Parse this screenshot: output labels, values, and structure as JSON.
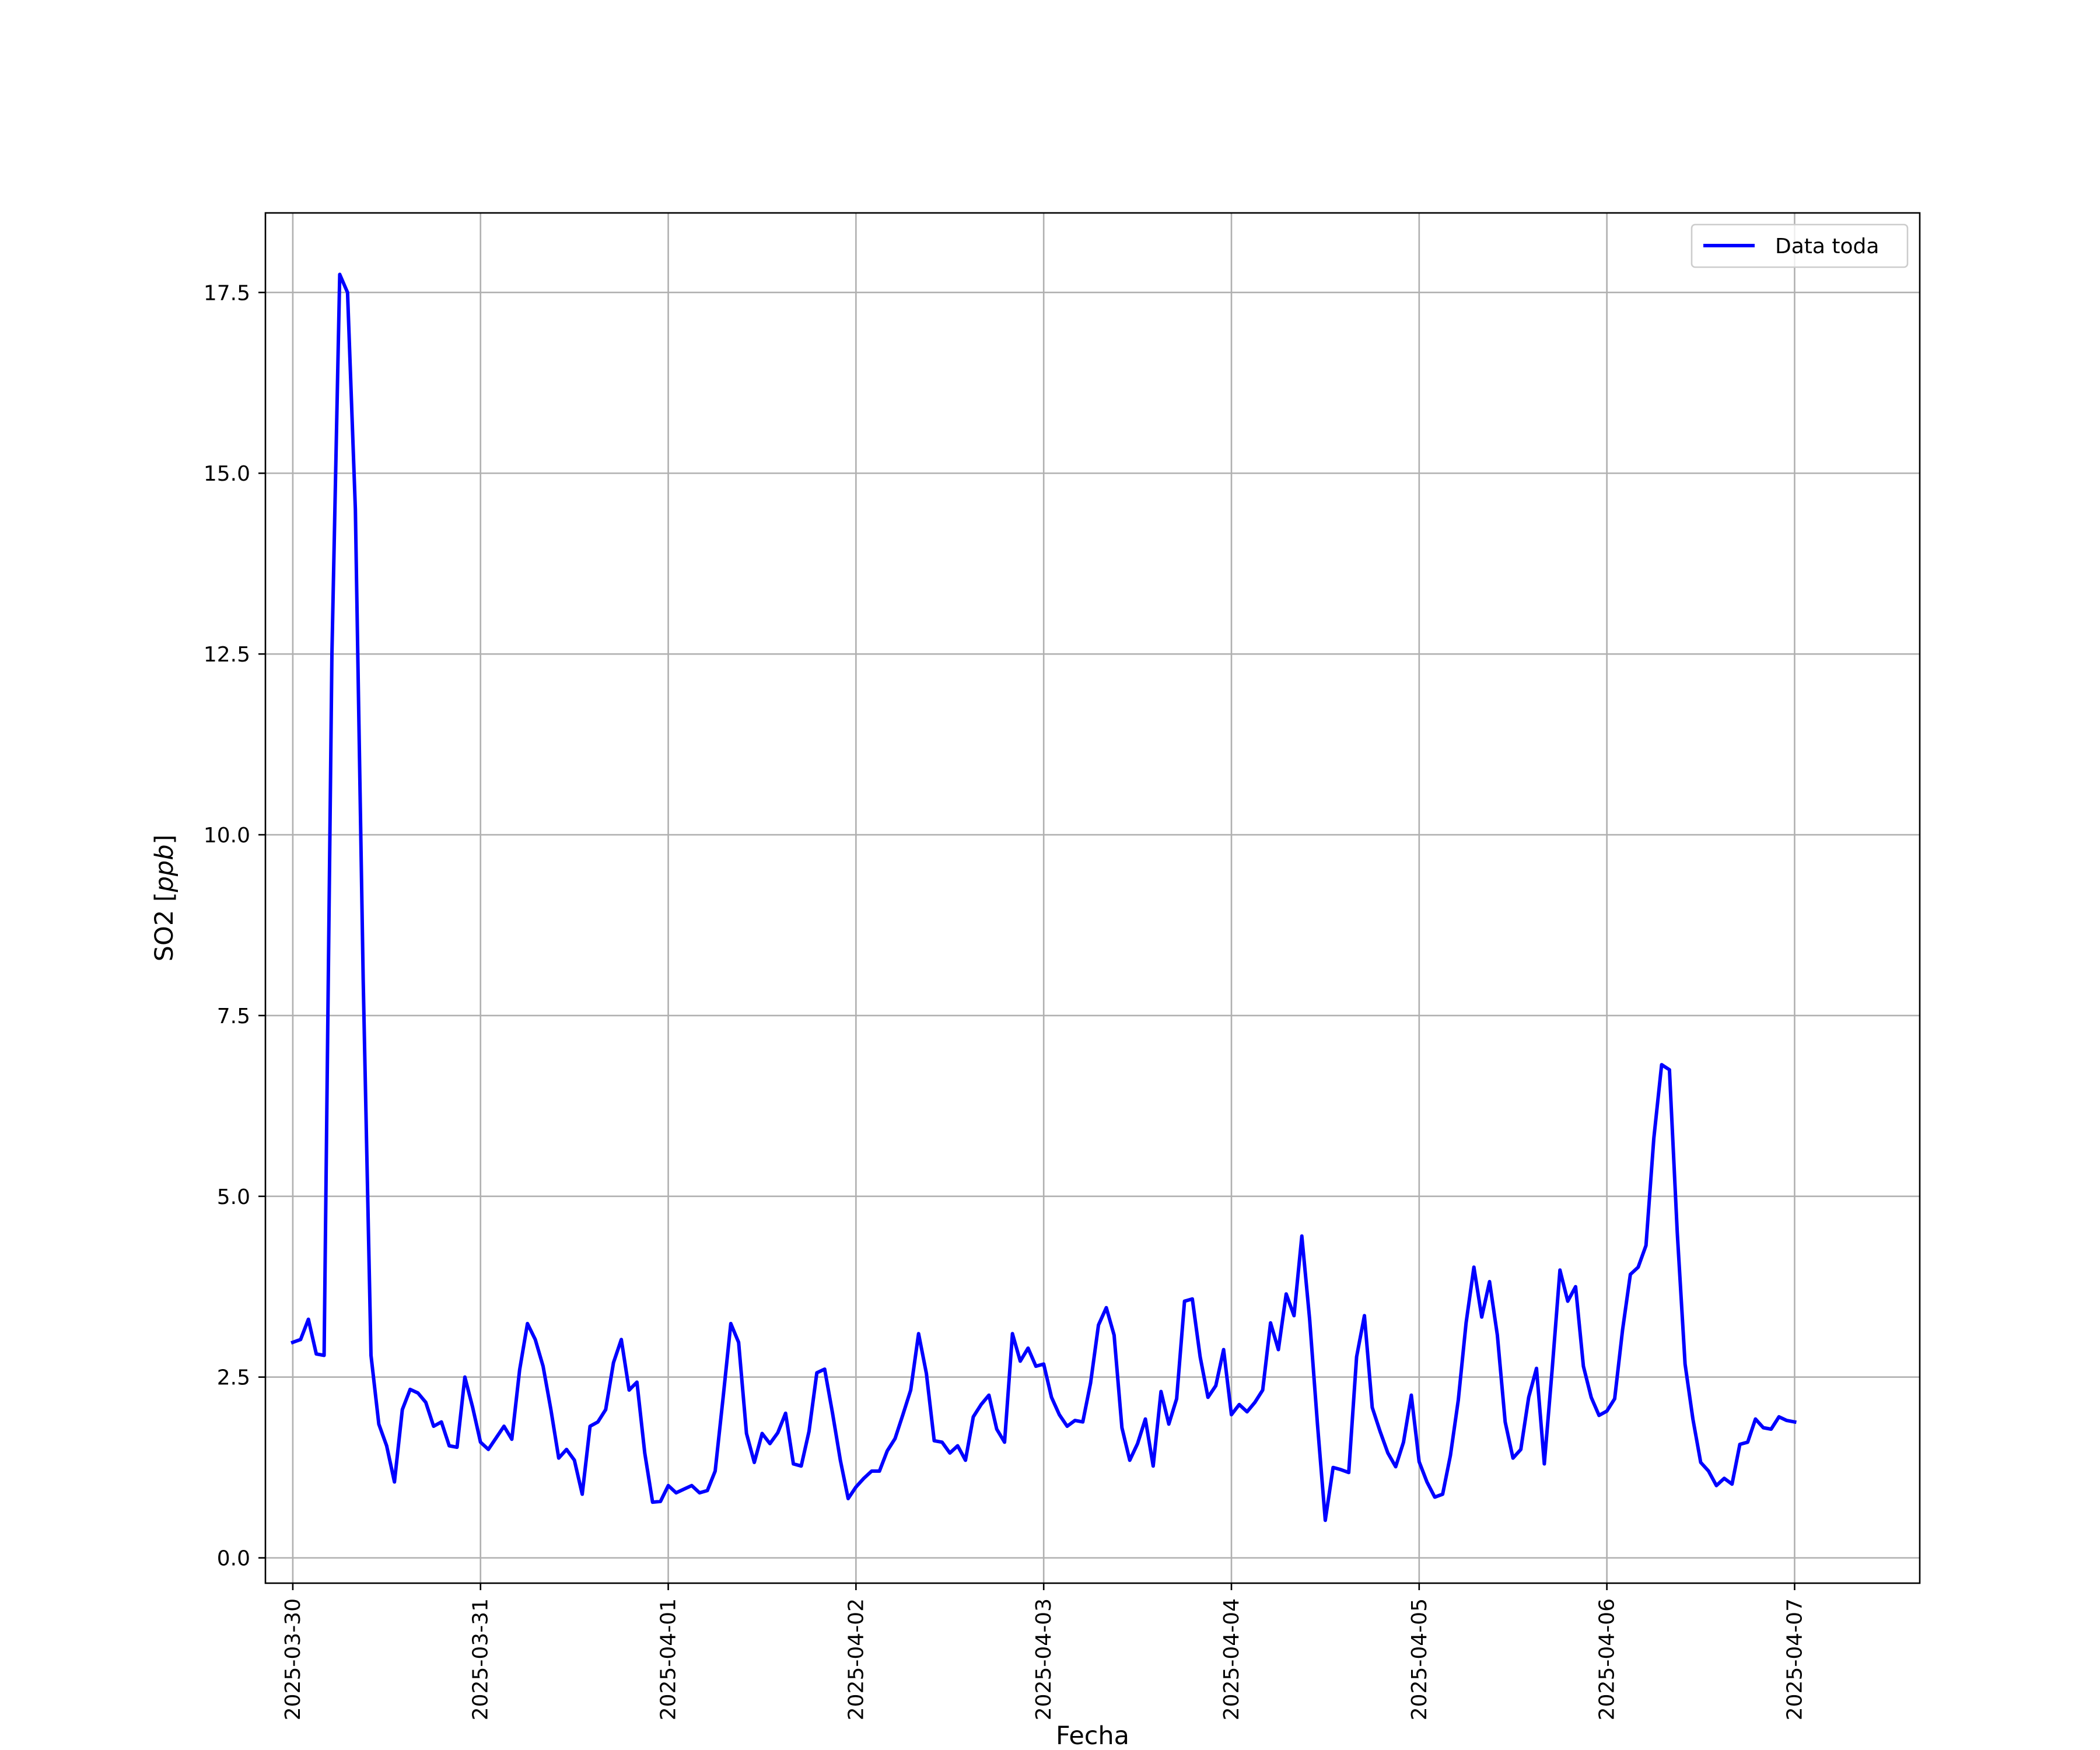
{
  "chart_data": {
    "type": "line",
    "title": "",
    "xlabel": "Fecha",
    "ylabel": "SO2",
    "ylabel_unit": "ppb",
    "xlim": [
      "2025-03-29T20:30",
      "2025-04-07T16:00"
    ],
    "ylim": [
      -0.35,
      18.6
    ],
    "grid": true,
    "legend_position": "top-right",
    "x_tick_labels": [
      "2025-03-30",
      "2025-03-31",
      "2025-04-01",
      "2025-04-02",
      "2025-04-03",
      "2025-04-04",
      "2025-04-05",
      "2025-04-06",
      "2025-04-07"
    ],
    "y_tick_values": [
      0.0,
      2.5,
      5.0,
      7.5,
      10.0,
      12.5,
      15.0,
      17.5
    ],
    "y_tick_labels": [
      "0.0",
      "2.5",
      "5.0",
      "7.5",
      "10.0",
      "12.5",
      "15.0",
      "17.5"
    ],
    "series": [
      {
        "name": "Data toda",
        "color": "#0000ff",
        "x": [
          "2025-03-30T00:00",
          "2025-03-30T01:00",
          "2025-03-30T02:00",
          "2025-03-30T03:00",
          "2025-03-30T04:00",
          "2025-03-30T05:00",
          "2025-03-30T06:00",
          "2025-03-30T07:00",
          "2025-03-30T08:00",
          "2025-03-30T09:00",
          "2025-03-30T10:00",
          "2025-03-30T11:00",
          "2025-03-30T12:00",
          "2025-03-30T13:00",
          "2025-03-30T14:00",
          "2025-03-30T15:00",
          "2025-03-30T16:00",
          "2025-03-30T17:00",
          "2025-03-30T18:00",
          "2025-03-30T19:00",
          "2025-03-30T20:00",
          "2025-03-30T21:00",
          "2025-03-30T22:00",
          "2025-03-30T23:00",
          "2025-03-31T00:00",
          "2025-03-31T01:00",
          "2025-03-31T02:00",
          "2025-03-31T03:00",
          "2025-03-31T04:00",
          "2025-03-31T05:00",
          "2025-03-31T06:00",
          "2025-03-31T07:00",
          "2025-03-31T08:00",
          "2025-03-31T09:00",
          "2025-03-31T10:00",
          "2025-03-31T11:00",
          "2025-03-31T12:00",
          "2025-03-31T13:00",
          "2025-03-31T14:00",
          "2025-03-31T15:00",
          "2025-03-31T16:00",
          "2025-03-31T17:00",
          "2025-03-31T18:00",
          "2025-03-31T19:00",
          "2025-03-31T20:00",
          "2025-03-31T21:00",
          "2025-03-31T22:00",
          "2025-03-31T23:00",
          "2025-04-01T00:00",
          "2025-04-01T01:00",
          "2025-04-01T02:00",
          "2025-04-01T03:00",
          "2025-04-01T04:00",
          "2025-04-01T05:00",
          "2025-04-01T06:00",
          "2025-04-01T07:00",
          "2025-04-01T08:00",
          "2025-04-01T09:00",
          "2025-04-01T10:00",
          "2025-04-01T11:00",
          "2025-04-01T12:00",
          "2025-04-01T13:00",
          "2025-04-01T14:00",
          "2025-04-01T15:00",
          "2025-04-01T16:00",
          "2025-04-01T17:00",
          "2025-04-01T18:00",
          "2025-04-01T19:00",
          "2025-04-01T20:00",
          "2025-04-01T21:00",
          "2025-04-01T22:00",
          "2025-04-01T23:00",
          "2025-04-02T00:00",
          "2025-04-02T01:00",
          "2025-04-02T02:00",
          "2025-04-02T03:00",
          "2025-04-02T04:00",
          "2025-04-02T05:00",
          "2025-04-02T06:00",
          "2025-04-02T07:00",
          "2025-04-02T08:00",
          "2025-04-02T09:00",
          "2025-04-02T10:00",
          "2025-04-02T11:00",
          "2025-04-02T12:00",
          "2025-04-02T13:00",
          "2025-04-02T14:00",
          "2025-04-02T15:00",
          "2025-04-02T16:00",
          "2025-04-02T17:00",
          "2025-04-02T18:00",
          "2025-04-02T19:00",
          "2025-04-02T20:00",
          "2025-04-02T21:00",
          "2025-04-02T22:00",
          "2025-04-02T23:00",
          "2025-04-03T00:00",
          "2025-04-03T01:00",
          "2025-04-03T02:00",
          "2025-04-03T03:00",
          "2025-04-03T04:00",
          "2025-04-03T05:00",
          "2025-04-03T06:00",
          "2025-04-03T07:00",
          "2025-04-03T08:00",
          "2025-04-03T09:00",
          "2025-04-03T10:00",
          "2025-04-03T11:00",
          "2025-04-03T12:00",
          "2025-04-03T13:00",
          "2025-04-03T14:00",
          "2025-04-03T15:00",
          "2025-04-03T16:00",
          "2025-04-03T17:00",
          "2025-04-03T18:00",
          "2025-04-03T19:00",
          "2025-04-03T20:00",
          "2025-04-03T21:00",
          "2025-04-03T22:00",
          "2025-04-03T23:00",
          "2025-04-04T00:00",
          "2025-04-04T01:00",
          "2025-04-04T02:00",
          "2025-04-04T03:00",
          "2025-04-04T04:00",
          "2025-04-04T05:00",
          "2025-04-04T06:00",
          "2025-04-04T07:00",
          "2025-04-04T08:00",
          "2025-04-04T09:00",
          "2025-04-04T10:00",
          "2025-04-04T11:00",
          "2025-04-04T12:00",
          "2025-04-04T13:00",
          "2025-04-04T14:00",
          "2025-04-04T15:00",
          "2025-04-04T16:00",
          "2025-04-04T17:00",
          "2025-04-04T18:00",
          "2025-04-04T19:00",
          "2025-04-04T20:00",
          "2025-04-04T21:00",
          "2025-04-04T22:00",
          "2025-04-04T23:00",
          "2025-04-05T00:00",
          "2025-04-05T01:00",
          "2025-04-05T02:00",
          "2025-04-05T03:00",
          "2025-04-05T04:00",
          "2025-04-05T05:00",
          "2025-04-05T06:00",
          "2025-04-05T07:00",
          "2025-04-05T08:00",
          "2025-04-05T09:00",
          "2025-04-05T10:00",
          "2025-04-05T11:00",
          "2025-04-05T12:00",
          "2025-04-05T13:00",
          "2025-04-05T14:00",
          "2025-04-05T15:00",
          "2025-04-05T16:00",
          "2025-04-05T17:00",
          "2025-04-05T18:00",
          "2025-04-05T19:00",
          "2025-04-05T20:00",
          "2025-04-05T21:00",
          "2025-04-05T22:00",
          "2025-04-05T23:00",
          "2025-04-06T00:00",
          "2025-04-06T01:00",
          "2025-04-06T02:00",
          "2025-04-06T03:00",
          "2025-04-06T04:00",
          "2025-04-06T05:00",
          "2025-04-06T06:00",
          "2025-04-06T07:00",
          "2025-04-06T08:00",
          "2025-04-06T09:00",
          "2025-04-06T10:00",
          "2025-04-06T11:00",
          "2025-04-06T12:00",
          "2025-04-06T13:00",
          "2025-04-06T14:00",
          "2025-04-06T15:00",
          "2025-04-06T16:00",
          "2025-04-06T17:00",
          "2025-04-06T18:00",
          "2025-04-06T19:00",
          "2025-04-06T20:00",
          "2025-04-06T21:00",
          "2025-04-06T22:00",
          "2025-04-06T23:00",
          "2025-04-07T00:00"
        ],
        "y": [
          2.98,
          3.02,
          3.3,
          2.82,
          2.8,
          12.5,
          17.75,
          17.5,
          14.5,
          8.0,
          2.8,
          1.85,
          1.55,
          1.05,
          2.05,
          2.33,
          2.28,
          2.15,
          1.82,
          1.88,
          1.55,
          1.53,
          2.5,
          2.08,
          1.6,
          1.5,
          1.66,
          1.82,
          1.64,
          2.6,
          3.24,
          3.02,
          2.65,
          2.05,
          1.38,
          1.5,
          1.35,
          0.88,
          1.82,
          1.88,
          2.05,
          2.7,
          3.02,
          2.32,
          2.43,
          1.45,
          0.77,
          0.78,
          1.0,
          0.9,
          0.95,
          1.0,
          0.9,
          0.93,
          1.2,
          2.2,
          3.24,
          2.98,
          1.72,
          1.32,
          1.72,
          1.58,
          1.73,
          2.0,
          1.3,
          1.27,
          1.75,
          2.56,
          2.61,
          2.0,
          1.35,
          0.82,
          0.98,
          1.1,
          1.2,
          1.2,
          1.48,
          1.65,
          1.98,
          2.32,
          3.1,
          2.55,
          1.62,
          1.6,
          1.45,
          1.55,
          1.35,
          1.95,
          2.12,
          2.25,
          1.78,
          1.6,
          3.1,
          2.72,
          2.9,
          2.65,
          2.68,
          2.22,
          1.98,
          1.82,
          1.9,
          1.88,
          2.42,
          3.22,
          3.46,
          3.08,
          1.8,
          1.35,
          1.58,
          1.92,
          1.27,
          2.3,
          1.85,
          2.2,
          3.55,
          3.58,
          2.78,
          2.22,
          2.38,
          2.88,
          1.98,
          2.12,
          2.02,
          2.15,
          2.32,
          3.25,
          2.88,
          3.65,
          3.35,
          4.45,
          3.3,
          1.85,
          0.52,
          1.25,
          1.22,
          1.18,
          2.78,
          3.35,
          2.08,
          1.75,
          1.45,
          1.26,
          1.6,
          2.25,
          1.33,
          1.05,
          0.84,
          0.88,
          1.42,
          2.18,
          3.25,
          4.02,
          3.33,
          3.82,
          3.08,
          1.88,
          1.38,
          1.5,
          2.22,
          2.62,
          1.3,
          2.6,
          3.98,
          3.55,
          3.75,
          2.65,
          2.22,
          1.97,
          2.03,
          2.2,
          3.15,
          3.92,
          4.02,
          4.32,
          5.8,
          6.82,
          6.75,
          4.5,
          2.68,
          1.92,
          1.32,
          1.2,
          1.0,
          1.1,
          1.02,
          1.57,
          1.6,
          1.92,
          1.8,
          1.78,
          1.95,
          1.9,
          1.88
        ]
      }
    ]
  }
}
